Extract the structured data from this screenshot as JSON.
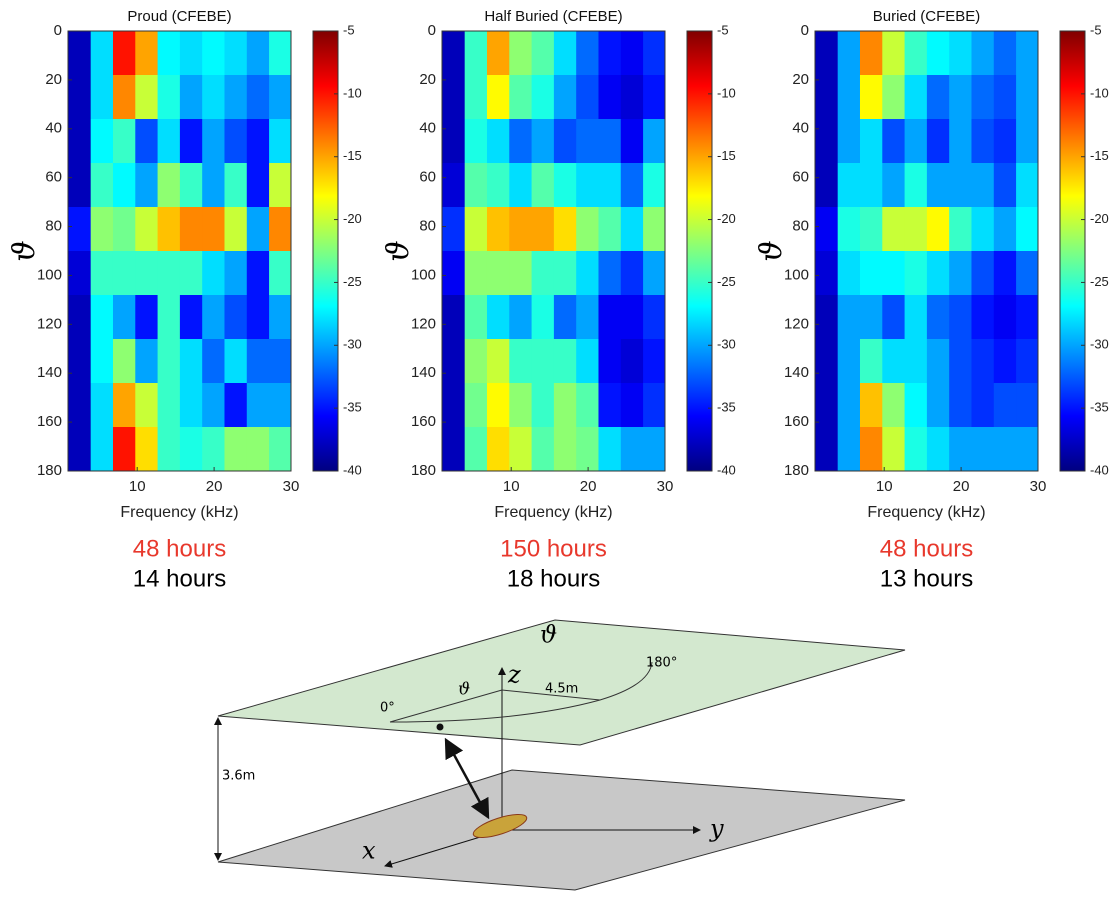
{
  "chart_data": [
    {
      "type": "heatmap",
      "title": "Proud (CFEBE)",
      "xlabel": "Frequency (kHz)",
      "ylabel": "ϑ",
      "x": [
        2.5,
        5.4,
        8.3,
        11.2,
        14.1,
        17,
        19.9,
        22.8,
        25.7,
        28.6
      ],
      "y": [
        9,
        27,
        45,
        63,
        81,
        99,
        117,
        135,
        153,
        171
      ],
      "z": [
        [
          -38,
          -28,
          -10,
          -15,
          -27,
          -28,
          -27,
          -28,
          -30,
          -26
        ],
        [
          -38,
          -28,
          -14,
          -20,
          -26,
          -30,
          -28,
          -30,
          -32,
          -30
        ],
        [
          -38,
          -27,
          -25,
          -33,
          -28,
          -35,
          -30,
          -33,
          -35,
          -28
        ],
        [
          -38,
          -25,
          -27,
          -30,
          -22,
          -25,
          -30,
          -25,
          -35,
          -20
        ],
        [
          -35,
          -22,
          -23,
          -20,
          -16,
          -14,
          -14,
          -20,
          -30,
          -14
        ],
        [
          -37,
          -25,
          -25,
          -25,
          -25,
          -25,
          -28,
          -30,
          -35,
          -25
        ],
        [
          -38,
          -27,
          -30,
          -35,
          -25,
          -35,
          -30,
          -33,
          -35,
          -30
        ],
        [
          -38,
          -27,
          -22,
          -30,
          -25,
          -28,
          -32,
          -28,
          -32,
          -32
        ],
        [
          -38,
          -28,
          -15,
          -20,
          -25,
          -28,
          -30,
          -35,
          -30,
          -30
        ],
        [
          -38,
          -28,
          -10,
          -17,
          -25,
          -26,
          -25,
          -22,
          -22,
          -24
        ]
      ],
      "xlim": [
        1,
        30
      ],
      "ylim": [
        0,
        180
      ],
      "xticks": [
        10,
        20,
        30
      ],
      "yticks": [
        0,
        20,
        40,
        60,
        80,
        100,
        120,
        140,
        160,
        180
      ],
      "clim": [
        -40,
        -5
      ],
      "cticks": [
        -5,
        -10,
        -15,
        -20,
        -25,
        -30,
        -35,
        -40
      ],
      "colormap": "jet",
      "annotations": [
        {
          "text": "48 hours",
          "color": "#e8382c"
        },
        {
          "text": "14 hours",
          "color": "#000000"
        }
      ]
    },
    {
      "type": "heatmap",
      "title": "Half Buried (CFEBE)",
      "xlabel": "Frequency (kHz)",
      "ylabel": "ϑ",
      "x": [
        2.5,
        5.4,
        8.3,
        11.2,
        14.1,
        17,
        19.9,
        22.8,
        25.7,
        28.6
      ],
      "y": [
        9,
        27,
        45,
        63,
        81,
        99,
        117,
        135,
        153,
        171
      ],
      "z": [
        [
          -38,
          -25,
          -15,
          -22,
          -24,
          -28,
          -32,
          -35,
          -36,
          -34
        ],
        [
          -38,
          -25,
          -18,
          -24,
          -26,
          -30,
          -33,
          -36,
          -37,
          -35
        ],
        [
          -38,
          -26,
          -28,
          -32,
          -30,
          -33,
          -32,
          -32,
          -36,
          -30
        ],
        [
          -37,
          -24,
          -25,
          -28,
          -24,
          -26,
          -28,
          -28,
          -32,
          -26
        ],
        [
          -34,
          -20,
          -16,
          -15,
          -15,
          -17,
          -22,
          -24,
          -28,
          -22
        ],
        [
          -36,
          -22,
          -22,
          -22,
          -25,
          -25,
          -28,
          -32,
          -34,
          -30
        ],
        [
          -38,
          -24,
          -28,
          -30,
          -26,
          -32,
          -30,
          -36,
          -36,
          -34
        ],
        [
          -38,
          -22,
          -20,
          -25,
          -25,
          -25,
          -28,
          -36,
          -37,
          -35
        ],
        [
          -38,
          -23,
          -18,
          -22,
          -25,
          -22,
          -24,
          -35,
          -36,
          -34
        ],
        [
          -38,
          -24,
          -17,
          -20,
          -24,
          -22,
          -23,
          -28,
          -30,
          -30
        ]
      ],
      "xlim": [
        1,
        30
      ],
      "ylim": [
        0,
        180
      ],
      "xticks": [
        10,
        20,
        30
      ],
      "yticks": [
        0,
        20,
        40,
        60,
        80,
        100,
        120,
        140,
        160,
        180
      ],
      "clim": [
        -40,
        -5
      ],
      "cticks": [
        -5,
        -10,
        -15,
        -20,
        -25,
        -30,
        -35,
        -40
      ],
      "colormap": "jet",
      "annotations": [
        {
          "text": "150 hours",
          "color": "#e8382c"
        },
        {
          "text": "18 hours",
          "color": "#000000"
        }
      ]
    },
    {
      "type": "heatmap",
      "title": "Buried (CFEBE)",
      "xlabel": "Frequency (kHz)",
      "ylabel": "ϑ",
      "x": [
        2.5,
        5.4,
        8.3,
        11.2,
        14.1,
        17,
        19.9,
        22.8,
        25.7,
        28.6
      ],
      "y": [
        9,
        27,
        45,
        63,
        81,
        99,
        117,
        135,
        153,
        171
      ],
      "z": [
        [
          -38,
          -30,
          -14,
          -20,
          -25,
          -27,
          -28,
          -30,
          -32,
          -30
        ],
        [
          -38,
          -30,
          -18,
          -22,
          -28,
          -32,
          -30,
          -32,
          -33,
          -30
        ],
        [
          -38,
          -30,
          -28,
          -33,
          -30,
          -34,
          -30,
          -33,
          -34,
          -30
        ],
        [
          -38,
          -28,
          -28,
          -30,
          -26,
          -30,
          -30,
          -30,
          -33,
          -28
        ],
        [
          -36,
          -26,
          -25,
          -20,
          -20,
          -18,
          -25,
          -28,
          -30,
          -27
        ],
        [
          -37,
          -28,
          -27,
          -27,
          -26,
          -28,
          -30,
          -33,
          -35,
          -32
        ],
        [
          -38,
          -30,
          -30,
          -33,
          -28,
          -32,
          -33,
          -35,
          -36,
          -35
        ],
        [
          -38,
          -30,
          -25,
          -28,
          -28,
          -30,
          -33,
          -34,
          -35,
          -34
        ],
        [
          -38,
          -30,
          -16,
          -22,
          -27,
          -30,
          -33,
          -34,
          -33,
          -33
        ],
        [
          -38,
          -30,
          -14,
          -20,
          -26,
          -28,
          -30,
          -30,
          -30,
          -30
        ]
      ],
      "xlim": [
        1,
        30
      ],
      "ylim": [
        0,
        180
      ],
      "xticks": [
        10,
        20,
        30
      ],
      "yticks": [
        0,
        20,
        40,
        60,
        80,
        100,
        120,
        140,
        160,
        180
      ],
      "clim": [
        -40,
        -5
      ],
      "cticks": [
        -5,
        -10,
        -15,
        -20,
        -25,
        -30,
        -35,
        -40
      ],
      "colormap": "jet",
      "annotations": [
        {
          "text": "48 hours",
          "color": "#e8382c"
        },
        {
          "text": "13 hours",
          "color": "#000000"
        }
      ]
    }
  ],
  "diagram": {
    "labels": {
      "plane": "ϑ",
      "z": "z",
      "radius": "4.5m",
      "end_angle": "180°",
      "start_angle": "0°",
      "angle": "ϑ",
      "height": "3.6m",
      "x": "x",
      "y": "y"
    }
  }
}
